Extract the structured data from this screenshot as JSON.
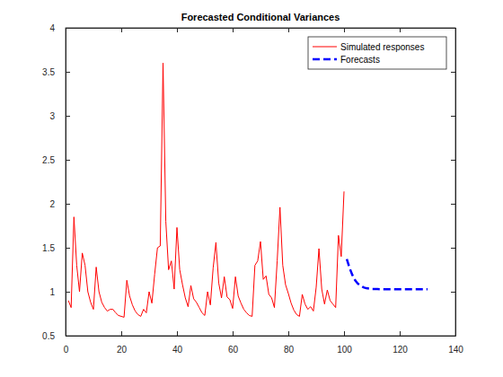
{
  "chart_data": {
    "type": "line",
    "title": "Forecasted Conditional Variances",
    "xlim": [
      0,
      140
    ],
    "xticks": [
      0,
      20,
      40,
      60,
      80,
      100,
      120,
      140
    ],
    "ylim": [
      0.5,
      4
    ],
    "yticks": [
      0.5,
      1,
      1.5,
      2,
      2.5,
      3,
      3.5,
      4
    ],
    "legend": "northeast",
    "series": [
      {
        "name": "Simulated responses",
        "color": "#ff0000",
        "line_style": "solid",
        "x": [
          1,
          2,
          3,
          4,
          5,
          6,
          7,
          8,
          9,
          10,
          11,
          12,
          13,
          14,
          15,
          16,
          17,
          18,
          19,
          20,
          21,
          22,
          23,
          24,
          25,
          26,
          27,
          28,
          29,
          30,
          31,
          32,
          33,
          34,
          35,
          36,
          37,
          38,
          39,
          40,
          41,
          42,
          43,
          44,
          45,
          46,
          47,
          48,
          49,
          50,
          51,
          52,
          53,
          54,
          55,
          56,
          57,
          58,
          59,
          60,
          61,
          62,
          63,
          64,
          65,
          66,
          67,
          68,
          69,
          70,
          71,
          72,
          73,
          74,
          75,
          76,
          77,
          78,
          79,
          80,
          81,
          82,
          83,
          84,
          85,
          86,
          87,
          88,
          89,
          90,
          91,
          92,
          93,
          94,
          95,
          96,
          97,
          98,
          99,
          100
        ],
        "values": [
          0.9,
          0.82,
          1.85,
          1.3,
          1.0,
          1.44,
          1.3,
          1.0,
          0.88,
          0.8,
          1.28,
          1.0,
          0.88,
          0.82,
          0.78,
          0.8,
          0.8,
          0.76,
          0.73,
          0.72,
          0.71,
          1.13,
          0.95,
          0.85,
          0.78,
          0.74,
          0.72,
          0.8,
          0.76,
          1.0,
          0.87,
          1.2,
          1.5,
          1.52,
          3.6,
          1.8,
          1.25,
          1.35,
          1.03,
          1.73,
          1.25,
          1.08,
          0.93,
          0.83,
          1.07,
          0.92,
          0.88,
          0.82,
          0.76,
          0.73,
          1.0,
          0.85,
          1.27,
          1.56,
          1.1,
          0.93,
          1.17,
          0.94,
          0.91,
          0.81,
          1.17,
          0.95,
          0.87,
          0.8,
          0.76,
          0.73,
          0.72,
          1.3,
          1.35,
          1.57,
          1.14,
          1.18,
          0.97,
          0.93,
          0.82,
          1.35,
          1.96,
          1.3,
          1.08,
          0.98,
          0.87,
          0.79,
          0.74,
          0.72,
          0.97,
          0.86,
          0.8,
          0.83,
          0.78,
          1.05,
          1.49,
          1.03,
          0.86,
          1.02,
          0.9,
          0.86,
          0.82,
          1.64,
          1.4,
          2.14
        ]
      },
      {
        "name": "Forecasts",
        "color": "#0000ff",
        "line_style": "dashed",
        "x": [
          101,
          102,
          103,
          104,
          105,
          106,
          107,
          108,
          109,
          110,
          111,
          112,
          113,
          114,
          115,
          116,
          117,
          118,
          119,
          120,
          121,
          122,
          123,
          124,
          125,
          126,
          127,
          128,
          129,
          130
        ],
        "values": [
          1.37,
          1.27,
          1.19,
          1.13,
          1.09,
          1.07,
          1.05,
          1.04,
          1.035,
          1.03,
          1.03,
          1.03,
          1.028,
          1.028,
          1.028,
          1.028,
          1.028,
          1.027,
          1.027,
          1.027,
          1.027,
          1.027,
          1.027,
          1.027,
          1.027,
          1.027,
          1.027,
          1.027,
          1.027,
          1.027
        ]
      }
    ]
  }
}
